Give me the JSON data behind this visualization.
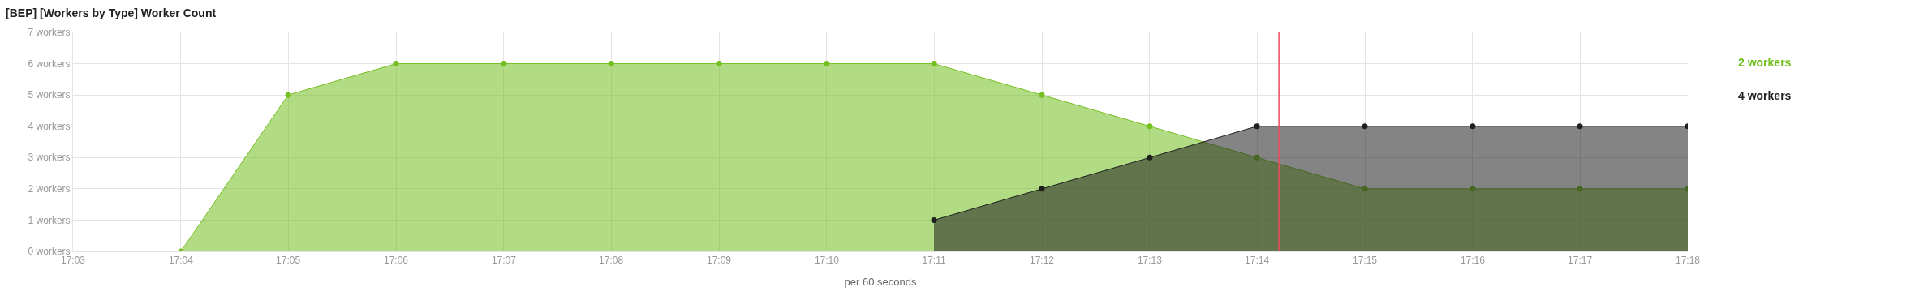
{
  "chart_data": {
    "type": "area",
    "title": "[BEP] [Workers by Type] Worker Count",
    "xlabel": "per 60 seconds",
    "series": [
      {
        "color": "#73bf1f",
        "x": [
          17.0667,
          17.0833,
          17.1,
          17.1167,
          17.1333,
          17.15,
          17.1667,
          17.1833,
          17.2,
          17.2167,
          17.2333,
          17.25,
          17.2667,
          17.2833,
          17.3
        ],
        "values": [
          0,
          5,
          6,
          6,
          6,
          6,
          6,
          6,
          5,
          4,
          3,
          2,
          2,
          2,
          2
        ]
      },
      {
        "color": "#1f1f1f",
        "x": [
          17.1833,
          17.2,
          17.2167,
          17.2333,
          17.25,
          17.2667,
          17.2833,
          17.3
        ],
        "values": [
          1,
          2,
          3,
          4,
          4,
          4,
          4,
          4
        ]
      }
    ],
    "xlim": [
      17.05,
      17.3
    ],
    "xticks": [
      {
        "value": 17.05,
        "label": "17:03"
      },
      {
        "value": 17.0667,
        "label": "17:04"
      },
      {
        "value": 17.0833,
        "label": "17:05"
      },
      {
        "value": 17.1,
        "label": "17:06"
      },
      {
        "value": 17.1167,
        "label": "17:07"
      },
      {
        "value": 17.1333,
        "label": "17:08"
      },
      {
        "value": 17.15,
        "label": "17:09"
      },
      {
        "value": 17.1667,
        "label": "17:10"
      },
      {
        "value": 17.1833,
        "label": "17:11"
      },
      {
        "value": 17.2,
        "label": "17:12"
      },
      {
        "value": 17.2167,
        "label": "17:13"
      },
      {
        "value": 17.2333,
        "label": "17:14"
      },
      {
        "value": 17.25,
        "label": "17:15"
      },
      {
        "value": 17.2667,
        "label": "17:16"
      },
      {
        "value": 17.2833,
        "label": "17:17"
      },
      {
        "value": 17.3,
        "label": "17:18"
      }
    ],
    "ylim": [
      0,
      7
    ],
    "yticks": [
      {
        "value": 0,
        "label": "0 workers"
      },
      {
        "value": 1,
        "label": "1 workers"
      },
      {
        "value": 2,
        "label": "2 workers"
      },
      {
        "value": 3,
        "label": "3 workers"
      },
      {
        "value": 4,
        "label": "4 workers"
      },
      {
        "value": 5,
        "label": "5 workers"
      },
      {
        "value": 6,
        "label": "6 workers"
      },
      {
        "value": 7,
        "label": "7 workers"
      }
    ],
    "ref_lines": [
      {
        "axis": "x",
        "value": 17.2367,
        "color": "#f2495c"
      }
    ],
    "annotations": [
      "2 workers",
      "4 workers"
    ],
    "grid": true,
    "marker": "circle",
    "line_style": "solid"
  }
}
